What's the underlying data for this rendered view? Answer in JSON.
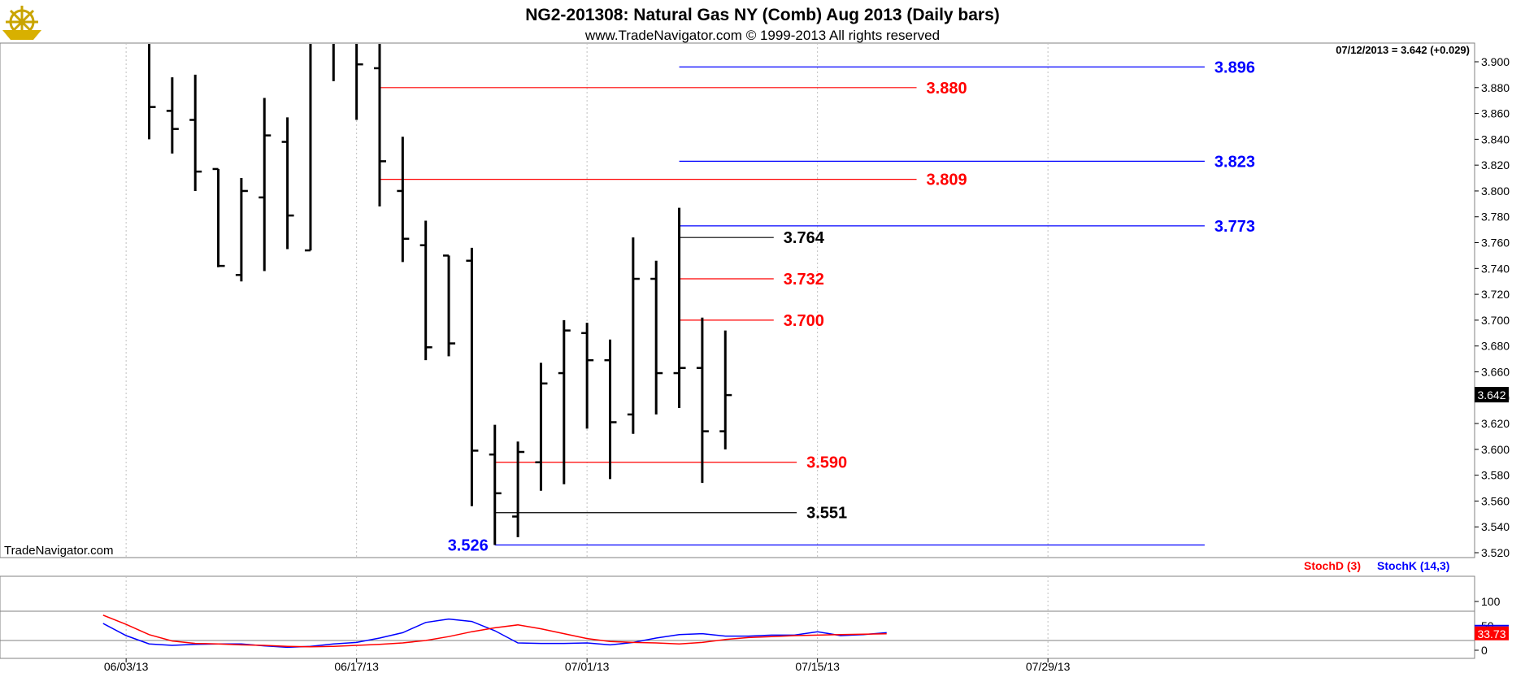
{
  "header": {
    "title": "NG2-201308:  Natural Gas NY (Comb) Aug 2013  (Daily bars)",
    "subtitle": "www.TradeNavigator.com © 1999-2013 All rights reserved",
    "last_info": "07/12/2013 = 3.642 (+0.029)",
    "watermark": "TradeNavigator.com",
    "logo": "ship-wheel-logo"
  },
  "colors": {
    "red": "#ff0000",
    "blue": "#0000ff",
    "black": "#000000",
    "grid": "#c0c0c0",
    "last_price_bg": "#000000",
    "stoch_last_bg": "#ff0000"
  },
  "chart_data": {
    "type": "ohlc",
    "ylim": [
      3.515,
      3.915
    ],
    "price_ticks": [
      "3.520",
      "3.540",
      "3.560",
      "3.580",
      "3.600",
      "3.620",
      "3.640",
      "3.660",
      "3.680",
      "3.700",
      "3.720",
      "3.740",
      "3.760",
      "3.780",
      "3.800",
      "3.820",
      "3.840",
      "3.860",
      "3.880",
      "3.900"
    ],
    "last_price": "3.642",
    "x_labels": [
      {
        "label": "06/03/13",
        "bar": -1
      },
      {
        "label": "06/17/13",
        "bar": 9
      },
      {
        "label": "07/01/13",
        "bar": 19
      },
      {
        "label": "07/15/13",
        "bar": 29
      },
      {
        "label": "07/29/13",
        "bar": 39
      }
    ],
    "bars": [
      {
        "high": 3.915,
        "low": 3.84,
        "open": 3.915,
        "close": 3.865
      },
      {
        "high": 3.888,
        "low": 3.829,
        "open": 3.862,
        "close": 3.848
      },
      {
        "high": 3.89,
        "low": 3.8,
        "open": 3.855,
        "close": 3.815
      },
      {
        "high": 3.817,
        "low": 3.741,
        "open": 3.817,
        "close": 3.742
      },
      {
        "high": 3.81,
        "low": 3.73,
        "open": 3.735,
        "close": 3.8
      },
      {
        "high": 3.872,
        "low": 3.738,
        "open": 3.795,
        "close": 3.843
      },
      {
        "high": 3.857,
        "low": 3.755,
        "open": 3.838,
        "close": 3.781
      },
      {
        "high": 3.915,
        "low": 3.754,
        "open": 3.754,
        "close": 3.915
      },
      {
        "high": 3.915,
        "low": 3.885,
        "open": 3.915,
        "close": 3.915
      },
      {
        "high": 3.915,
        "low": 3.855,
        "open": 3.915,
        "close": 3.898
      },
      {
        "high": 3.915,
        "low": 3.788,
        "open": 3.895,
        "close": 3.823
      },
      {
        "high": 3.842,
        "low": 3.745,
        "open": 3.8,
        "close": 3.763
      },
      {
        "high": 3.777,
        "low": 3.669,
        "open": 3.758,
        "close": 3.679
      },
      {
        "high": 3.75,
        "low": 3.672,
        "open": 3.75,
        "close": 3.682
      },
      {
        "high": 3.756,
        "low": 3.556,
        "open": 3.746,
        "close": 3.599
      },
      {
        "high": 3.619,
        "low": 3.526,
        "open": 3.596,
        "close": 3.566
      },
      {
        "high": 3.606,
        "low": 3.532,
        "open": 3.548,
        "close": 3.598
      },
      {
        "high": 3.667,
        "low": 3.568,
        "open": 3.59,
        "close": 3.651
      },
      {
        "high": 3.7,
        "low": 3.573,
        "open": 3.659,
        "close": 3.692
      },
      {
        "high": 3.698,
        "low": 3.616,
        "open": 3.69,
        "close": 3.669
      },
      {
        "high": 3.685,
        "low": 3.577,
        "open": 3.669,
        "close": 3.621
      },
      {
        "high": 3.764,
        "low": 3.612,
        "open": 3.627,
        "close": 3.732
      },
      {
        "high": 3.746,
        "low": 3.627,
        "open": 3.732,
        "close": 3.659
      },
      {
        "high": 3.787,
        "low": 3.632,
        "open": 3.659,
        "close": 3.663
      },
      {
        "high": 3.702,
        "low": 3.574,
        "open": 3.663,
        "close": 3.614
      },
      {
        "high": 3.692,
        "low": 3.6,
        "open": 3.614,
        "close": 3.642
      }
    ],
    "levels": [
      {
        "value": 3.896,
        "label": "3.896",
        "color": "blue",
        "from_bar": 23,
        "to_bar": 45.8,
        "label_side": "right"
      },
      {
        "value": 3.88,
        "label": "3.880",
        "color": "red",
        "from_bar": 10,
        "to_bar": 33.3,
        "label_side": "right"
      },
      {
        "value": 3.823,
        "label": "3.823",
        "color": "blue",
        "from_bar": 23,
        "to_bar": 45.8,
        "label_side": "right"
      },
      {
        "value": 3.809,
        "label": "3.809",
        "color": "red",
        "from_bar": 10,
        "to_bar": 33.3,
        "label_side": "right"
      },
      {
        "value": 3.773,
        "label": "3.773",
        "color": "blue",
        "from_bar": 23,
        "to_bar": 45.8,
        "label_side": "right"
      },
      {
        "value": 3.764,
        "label": "3.764",
        "color": "black",
        "from_bar": 23,
        "to_bar": 27.1,
        "label_side": "right"
      },
      {
        "value": 3.732,
        "label": "3.732",
        "color": "red",
        "from_bar": 23,
        "to_bar": 27.1,
        "label_side": "right"
      },
      {
        "value": 3.7,
        "label": "3.700",
        "color": "red",
        "from_bar": 23,
        "to_bar": 27.1,
        "label_side": "right"
      },
      {
        "value": 3.59,
        "label": "3.590",
        "color": "red",
        "from_bar": 15,
        "to_bar": 28.1,
        "label_side": "right"
      },
      {
        "value": 3.551,
        "label": "3.551",
        "color": "black",
        "from_bar": 15,
        "to_bar": 28.1,
        "label_side": "right"
      },
      {
        "value": 3.526,
        "label": "3.526",
        "color": "blue",
        "from_bar": 15,
        "to_bar": 45.8,
        "label_side": "left"
      }
    ],
    "stochastic": {
      "legend_d": "StochD (3)",
      "legend_k": "StochK (14,3)",
      "ylim": [
        0,
        100
      ],
      "ticks": [
        "100",
        "50",
        "0"
      ],
      "reference_lines": [
        80,
        20
      ],
      "last_value": "33.73",
      "x_start_bar": -2,
      "stochD": [
        72,
        53,
        32,
        19,
        14,
        13,
        11,
        10,
        8,
        7,
        8,
        10,
        12,
        15,
        20,
        28,
        38,
        46,
        52,
        44,
        34,
        24,
        18,
        16,
        15,
        13,
        16,
        22,
        26,
        28,
        30,
        31,
        32,
        33,
        33.73
      ],
      "stochK": [
        55,
        30,
        13,
        10,
        12,
        13,
        13,
        9,
        6,
        8,
        13,
        16,
        25,
        36,
        57,
        64,
        59,
        40,
        15,
        14,
        14,
        15,
        11,
        16,
        25,
        32,
        34,
        29,
        29,
        31,
        31,
        38,
        30,
        32,
        36
      ]
    }
  }
}
